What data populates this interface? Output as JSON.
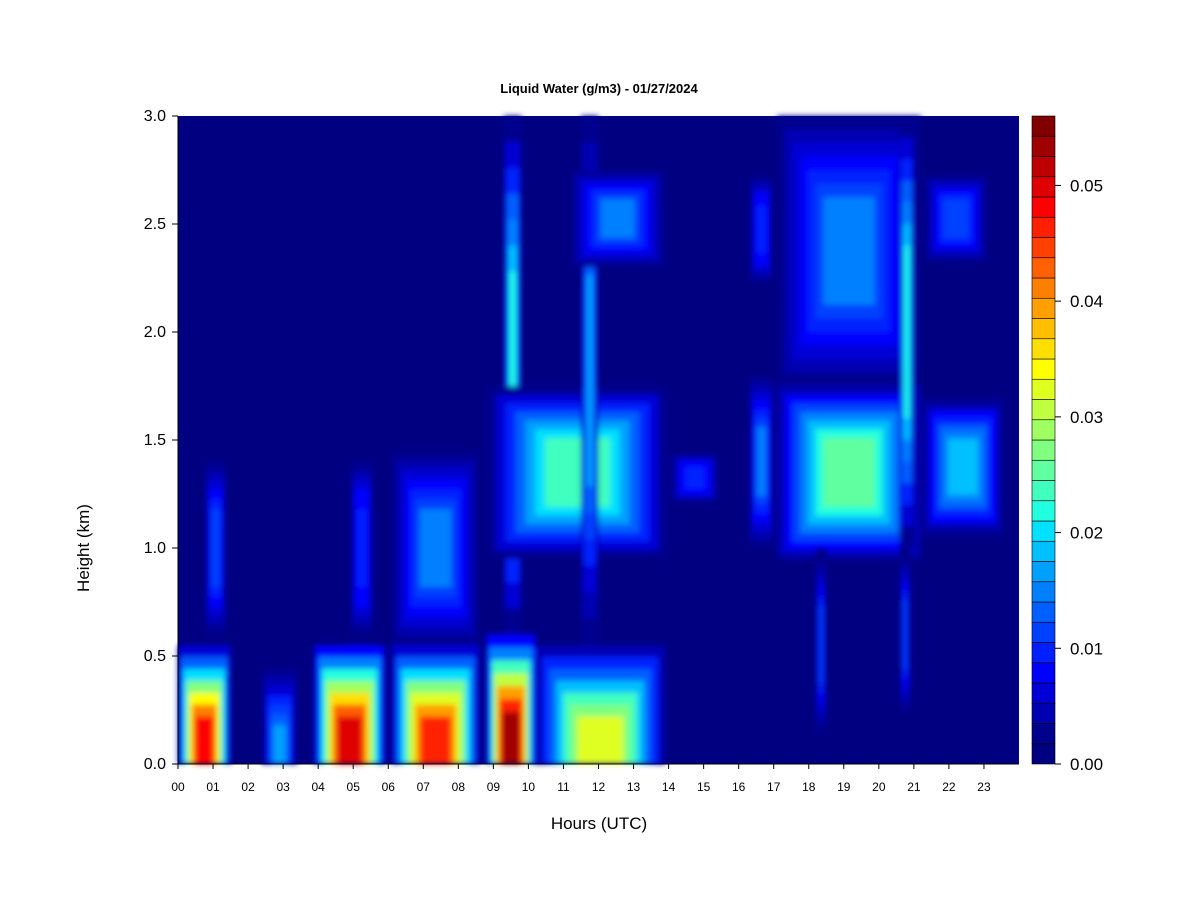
{
  "chart_data": {
    "type": "heatmap",
    "title": "Liquid Water (g/m3) - 01/27/2024",
    "xlabel": "Hours (UTC)",
    "ylabel": "Height (km)",
    "xlim": [
      0,
      24
    ],
    "ylim": [
      0.0,
      3.0
    ],
    "x_ticks": [
      "00",
      "01",
      "02",
      "03",
      "04",
      "05",
      "06",
      "07",
      "08",
      "09",
      "10",
      "11",
      "12",
      "13",
      "14",
      "15",
      "16",
      "17",
      "18",
      "19",
      "20",
      "21",
      "22",
      "23"
    ],
    "y_ticks": [
      "0.0",
      "0.5",
      "1.0",
      "1.5",
      "2.0",
      "2.5",
      "3.0"
    ],
    "colorbar": {
      "range": [
        0.0,
        0.056
      ],
      "ticks": [
        "0.00",
        "0.01",
        "0.02",
        "0.03",
        "0.04",
        "0.05"
      ],
      "colors": [
        "#000080",
        "#00008f",
        "#0000b3",
        "#0000d6",
        "#0000ff",
        "#0020ff",
        "#0040ff",
        "#0060ff",
        "#0080ff",
        "#00a0ff",
        "#00c0ff",
        "#00e0ff",
        "#20ffdf",
        "#40ffbf",
        "#60ff9f",
        "#80ff80",
        "#9fff60",
        "#bfff40",
        "#dfff20",
        "#ffff00",
        "#ffdf00",
        "#ffbf00",
        "#ff9f00",
        "#ff8000",
        "#ff6000",
        "#ff4000",
        "#ff2000",
        "#ff0000",
        "#df0000",
        "#bf0000",
        "#9f0000",
        "#800000"
      ]
    },
    "features": [
      {
        "hours": [
          0.0,
          1.5
        ],
        "height_km": [
          0.0,
          0.55
        ],
        "peak": 0.048
      },
      {
        "hours": [
          0.75,
          1.4
        ],
        "height_km": [
          0.55,
          1.45
        ],
        "peak": 0.012
      },
      {
        "hours": [
          2.4,
          3.4
        ],
        "height_km": [
          0.0,
          0.45
        ],
        "peak": 0.016
      },
      {
        "hours": [
          3.9,
          5.9
        ],
        "height_km": [
          0.0,
          0.55
        ],
        "peak": 0.05
      },
      {
        "hours": [
          4.9,
          5.6
        ],
        "height_km": [
          0.55,
          1.45
        ],
        "peak": 0.01
      },
      {
        "hours": [
          6.1,
          8.6
        ],
        "height_km": [
          0.0,
          0.55
        ],
        "peak": 0.046
      },
      {
        "hours": [
          6.1,
          8.6
        ],
        "height_km": [
          0.55,
          1.45
        ],
        "peak": 0.014
      },
      {
        "hours": [
          8.8,
          10.2
        ],
        "height_km": [
          0.0,
          0.6
        ],
        "peak": 0.054
      },
      {
        "hours": [
          9.3,
          9.8
        ],
        "height_km": [
          0.6,
          3.0
        ],
        "peak": 0.022
      },
      {
        "hours": [
          8.8,
          14.0
        ],
        "height_km": [
          0.95,
          1.75
        ],
        "peak": 0.024
      },
      {
        "hours": [
          10.2,
          13.9
        ],
        "height_km": [
          0.0,
          0.55
        ],
        "peak": 0.032
      },
      {
        "hours": [
          11.5,
          12.0
        ],
        "height_km": [
          0.55,
          3.0
        ],
        "peak": 0.016
      },
      {
        "hours": [
          11.2,
          13.9
        ],
        "height_km": [
          2.3,
          2.75
        ],
        "peak": 0.014
      },
      {
        "hours": [
          14.0,
          15.5
        ],
        "height_km": [
          1.2,
          1.45
        ],
        "peak": 0.01
      },
      {
        "hours": [
          16.3,
          17.0
        ],
        "height_km": [
          1.0,
          1.8
        ],
        "peak": 0.014
      },
      {
        "hours": [
          16.3,
          17.0
        ],
        "height_km": [
          2.2,
          2.75
        ],
        "peak": 0.01
      },
      {
        "hours": [
          17.1,
          21.2
        ],
        "height_km": [
          0.95,
          1.75
        ],
        "peak": 0.026
      },
      {
        "hours": [
          17.1,
          21.2
        ],
        "height_km": [
          1.75,
          3.0
        ],
        "peak": 0.014
      },
      {
        "hours": [
          21.2,
          23.6
        ],
        "height_km": [
          1.05,
          1.7
        ],
        "peak": 0.018
      },
      {
        "hours": [
          21.2,
          23.2
        ],
        "height_km": [
          2.3,
          2.75
        ],
        "peak": 0.012
      },
      {
        "hours": [
          18.2,
          18.5
        ],
        "height_km": [
          0.1,
          1.0
        ],
        "peak": 0.012
      },
      {
        "hours": [
          20.6,
          20.9
        ],
        "height_km": [
          0.2,
          1.0
        ],
        "peak": 0.012
      },
      {
        "hours": [
          20.6,
          21.0
        ],
        "height_km": [
          1.0,
          3.0
        ],
        "peak": 0.022
      }
    ]
  }
}
